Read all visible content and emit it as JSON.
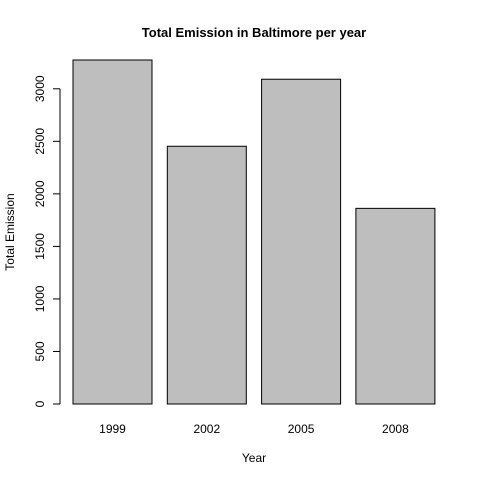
{
  "chart_data": {
    "type": "bar",
    "title": "Total Emission in Baltimore per year",
    "xlabel": "Year",
    "ylabel": "Total Emission",
    "categories": [
      "1999",
      "2002",
      "2005",
      "2008"
    ],
    "values": [
      3274,
      2453,
      3091,
      1862
    ],
    "yticks": [
      0,
      500,
      1000,
      1500,
      2000,
      2500,
      3000
    ],
    "ylim": [
      0,
      3274
    ],
    "bar_color": "#bebebe",
    "grid": false,
    "legend": "none"
  }
}
